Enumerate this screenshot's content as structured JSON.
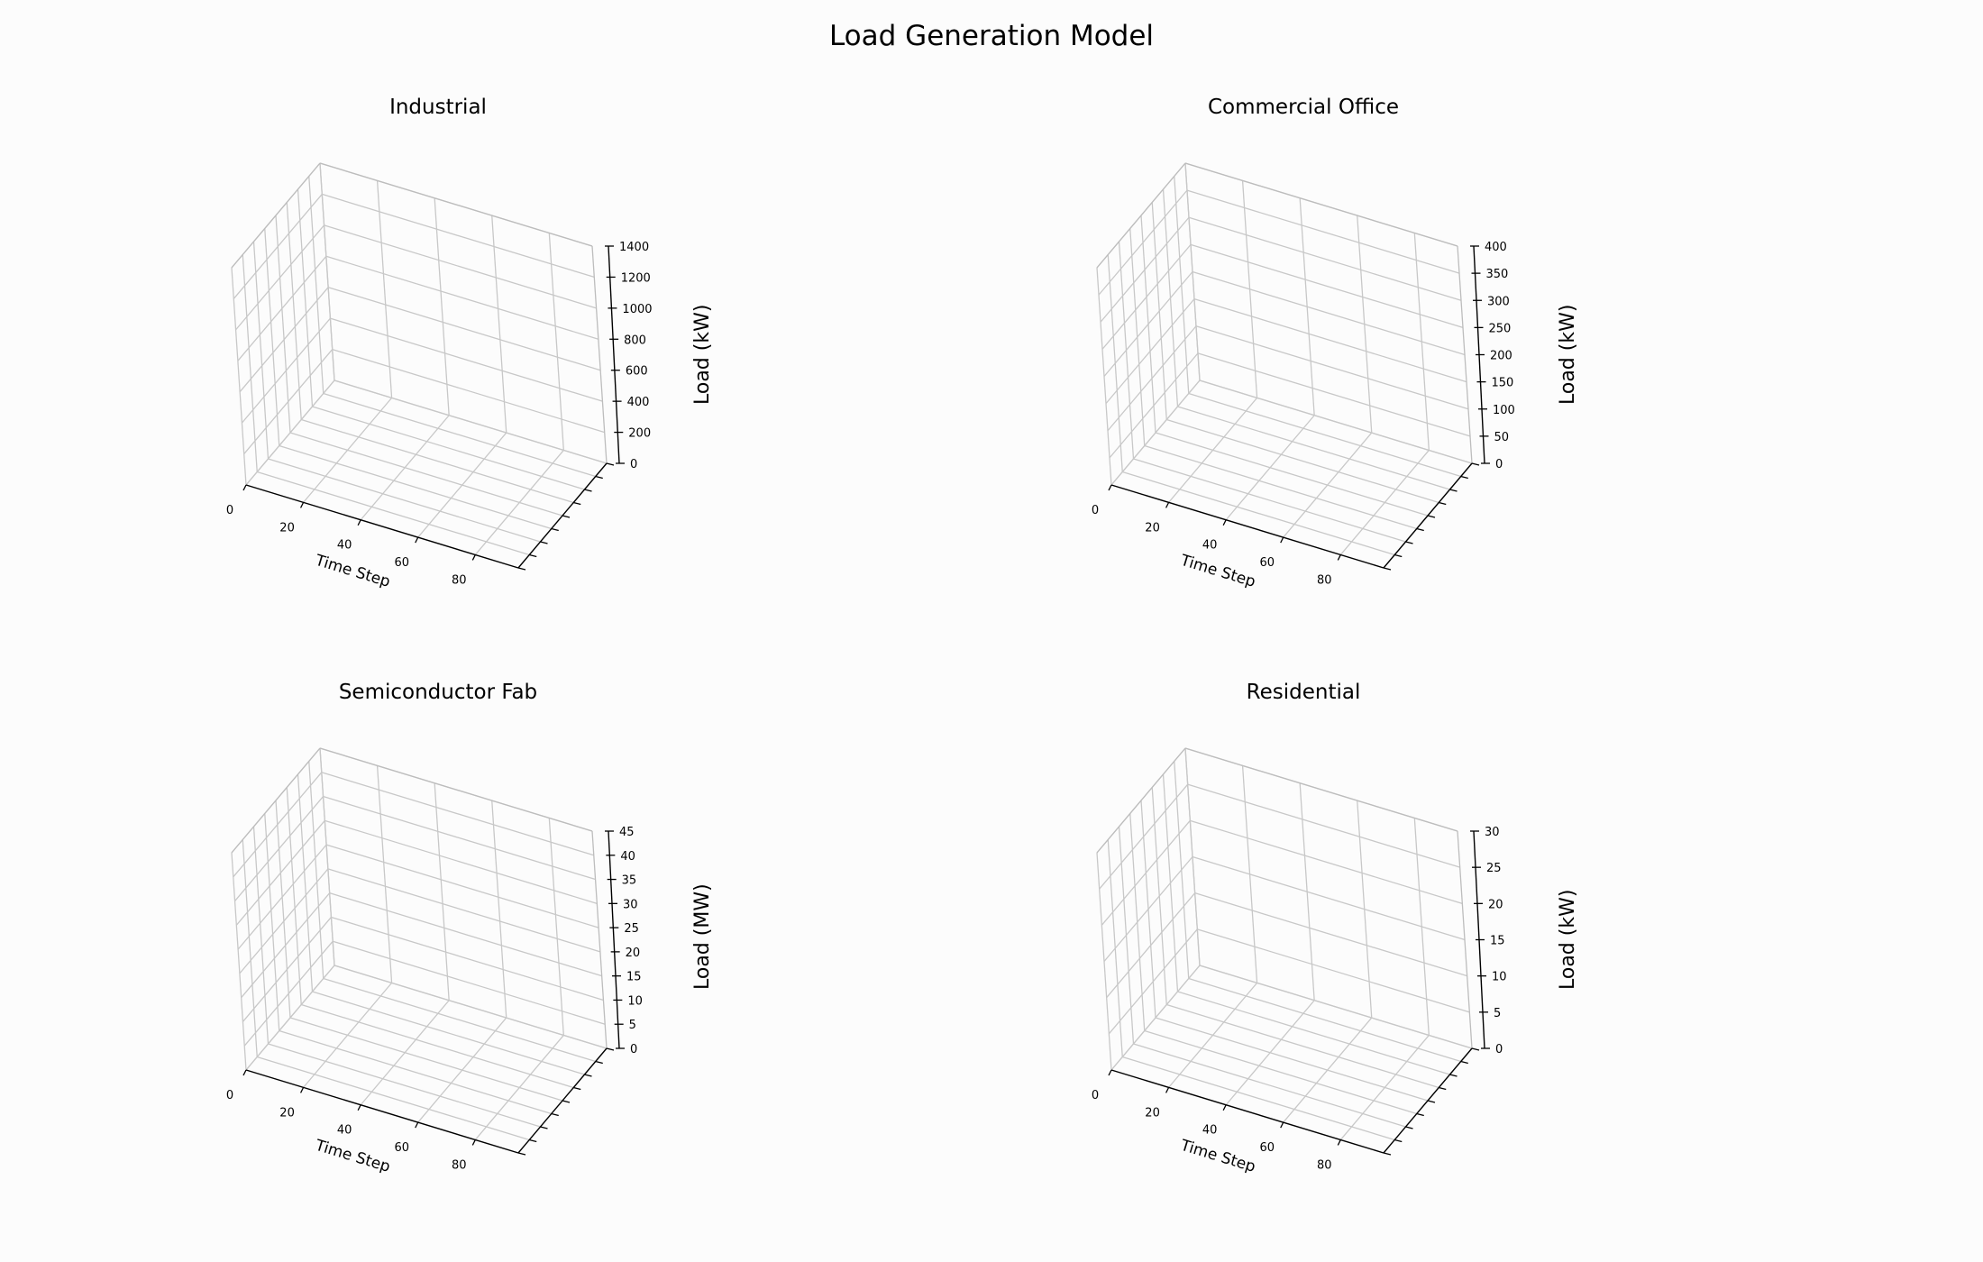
{
  "figure": {
    "suptitle": "Load Generation Model",
    "background": "#fcfcfc"
  },
  "chart_data": [
    {
      "type": "line",
      "subtype": "3d",
      "title": "Industrial",
      "xlabel": "Time Step",
      "ylabel": "",
      "zlabel": "Load (kW)",
      "x_ticks": [
        "0",
        "20",
        "40",
        "60",
        "80"
      ],
      "z_ticks": [
        "0",
        "200",
        "400",
        "600",
        "800",
        "1000",
        "1200",
        "1400"
      ],
      "y_tick_count": 8,
      "xlim": [
        0,
        95
      ],
      "zlim": [
        0,
        1400
      ],
      "series": [],
      "grid": true
    },
    {
      "type": "line",
      "subtype": "3d",
      "title": "Commercial Office",
      "xlabel": "Time Step",
      "ylabel": "",
      "zlabel": "Load (kW)",
      "x_ticks": [
        "0",
        "20",
        "40",
        "60",
        "80"
      ],
      "z_ticks": [
        "0",
        "50",
        "100",
        "150",
        "200",
        "250",
        "300",
        "350",
        "400"
      ],
      "y_tick_count": 8,
      "xlim": [
        0,
        95
      ],
      "zlim": [
        0,
        400
      ],
      "series": [],
      "grid": true
    },
    {
      "type": "line",
      "subtype": "3d",
      "title": "Semiconductor Fab",
      "xlabel": "Time Step",
      "ylabel": "",
      "zlabel": "Load (MW)",
      "x_ticks": [
        "0",
        "20",
        "40",
        "60",
        "80"
      ],
      "z_ticks": [
        "0",
        "5",
        "10",
        "15",
        "20",
        "25",
        "30",
        "35",
        "40",
        "45"
      ],
      "y_tick_count": 8,
      "xlim": [
        0,
        95
      ],
      "zlim": [
        0,
        45
      ],
      "series": [],
      "grid": true
    },
    {
      "type": "line",
      "subtype": "3d",
      "title": "Residential",
      "xlabel": "Time Step",
      "ylabel": "",
      "zlabel": "Load (kW)",
      "x_ticks": [
        "0",
        "20",
        "40",
        "60",
        "80"
      ],
      "z_ticks": [
        "0",
        "5",
        "10",
        "15",
        "20",
        "25",
        "30"
      ],
      "y_tick_count": 8,
      "xlim": [
        0,
        95
      ],
      "zlim": [
        0,
        30
      ],
      "series": [],
      "grid": true
    }
  ]
}
